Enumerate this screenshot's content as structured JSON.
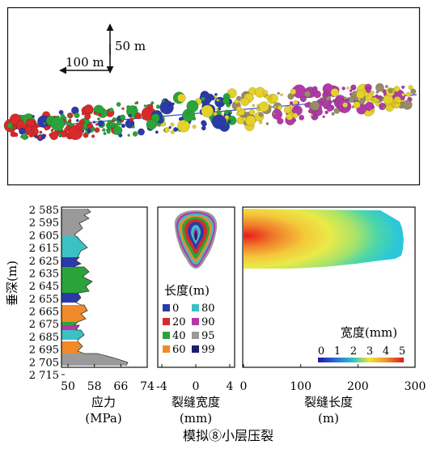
{
  "top_panel": {
    "scale_vertical": "50 m",
    "scale_horizontal": "100 m"
  },
  "stress_panel": {
    "y_axis_label": "垂深(m)",
    "y_ticks": [
      "2 585",
      "2 595",
      "2 605",
      "2 615",
      "2 625",
      "2 635",
      "2 645",
      "2 655",
      "2 665",
      "2 675",
      "2 685",
      "2 695",
      "2 705",
      "2 715"
    ],
    "x_ticks": [
      "50",
      "58",
      "66",
      "74"
    ],
    "x_label_line1": "应力",
    "x_label_line2": "(MPa)"
  },
  "width_profile_panel": {
    "x_ticks": [
      "-4",
      "0",
      "4"
    ],
    "x_label_line1": "裂缝宽度",
    "x_label_line2": "(mm)",
    "legend_title": "长度(m)",
    "legend": [
      {
        "label": "0",
        "color": "#2b3aa8"
      },
      {
        "label": "80",
        "color": "#3bc1c4"
      },
      {
        "label": "20",
        "color": "#d72a2a"
      },
      {
        "label": "90",
        "color": "#b23aa8"
      },
      {
        "label": "40",
        "color": "#2aa43a"
      },
      {
        "label": "95",
        "color": "#9a9a9a"
      },
      {
        "label": "60",
        "color": "#f08a2a"
      },
      {
        "label": "99",
        "color": "#1d1d6e"
      }
    ]
  },
  "length_panel": {
    "x_ticks": [
      "0",
      "100",
      "200",
      "300"
    ],
    "x_label_line1": "裂缝长度",
    "x_label_line2": "(m)",
    "colorbar_title": "宽度(mm)",
    "colorbar_ticks": [
      "0",
      "1",
      "2",
      "3",
      "4",
      "5"
    ]
  },
  "caption": "模拟⑧小层压裂"
}
